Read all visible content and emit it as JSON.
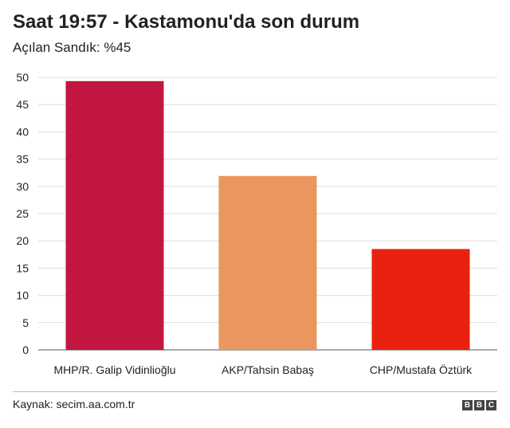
{
  "title": "Saat 19:57 - Kastamonu'da son durum",
  "subtitle": "Açılan Sandık: %45",
  "source": "Kaynak: secim.aa.com.tr",
  "logo": {
    "letters": [
      "B",
      "B",
      "C"
    ]
  },
  "chart_data": {
    "type": "bar",
    "categories": [
      "MHP/R. Galip Vidinlioğlu",
      "AKP/Tahsin Babaş",
      "CHP/Mustafa Öztürk"
    ],
    "values": [
      49.3,
      31.9,
      18.5
    ],
    "colors": [
      "#c0163f",
      "#ea965e",
      "#e8220f"
    ],
    "ylim": [
      0,
      50
    ],
    "yticks": [
      0,
      5,
      10,
      15,
      20,
      25,
      30,
      35,
      40,
      45,
      50
    ],
    "grid": true,
    "xlabel": "",
    "ylabel": ""
  }
}
